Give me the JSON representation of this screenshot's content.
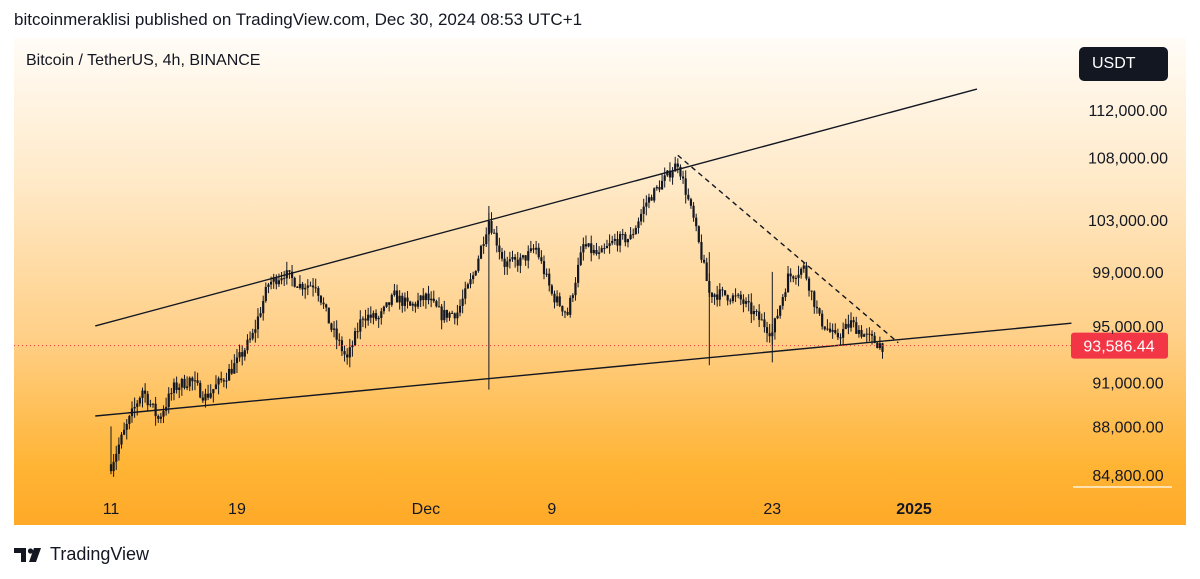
{
  "header": {
    "published": "bitcoinmeraklisi published on TradingView.com, Dec 30, 2024 08:53 UTC+1"
  },
  "symbol": {
    "title": "Bitcoin / TetherUS, 4h, BINANCE"
  },
  "currency_button": {
    "label": "USDT"
  },
  "footer": {
    "brand": "TradingView"
  },
  "colors": {
    "price_label": "#f23645",
    "candle": "#131722",
    "trendline": "#131722"
  },
  "chart_data": {
    "type": "candlestick",
    "title": "Bitcoin / TetherUS, 4h, BINANCE",
    "y_axis": {
      "unit": "USDT",
      "ticks": [
        112000,
        108000,
        103000,
        99000,
        95000,
        91000,
        88000,
        84800
      ],
      "tick_labels": [
        "112,000.00",
        "108,000.00",
        "103,000.00",
        "99,000.00",
        "95,000.00",
        "91,000.00",
        "88,000.00",
        "84,800.00"
      ],
      "range": [
        84000,
        116000
      ],
      "scale": "log"
    },
    "x_axis": {
      "tick_labels": [
        "11",
        "19",
        "Dec",
        "9",
        "23",
        "2025"
      ],
      "tick_dates": [
        "2024-11-11",
        "2024-11-19",
        "2024-12-01",
        "2024-12-09",
        "2024-12-23",
        "2025-01-01"
      ],
      "range": [
        "2024-11-11",
        "2025-01-02"
      ]
    },
    "last_price": {
      "value": 93586.44,
      "label": "93,586.44"
    },
    "price_path": [
      [
        "2024-11-11",
        85500
      ],
      [
        "2024-11-12",
        88000
      ],
      [
        "2024-11-13",
        90500
      ],
      [
        "2024-11-14",
        88500
      ],
      [
        "2024-11-15",
        90600
      ],
      [
        "2024-11-16",
        91200
      ],
      [
        "2024-11-17",
        90000
      ],
      [
        "2024-11-18",
        91100
      ],
      [
        "2024-11-19",
        92400
      ],
      [
        "2024-11-20",
        94300
      ],
      [
        "2024-11-21",
        98100
      ],
      [
        "2024-11-22",
        98900
      ],
      [
        "2024-11-23",
        98000
      ],
      [
        "2024-11-24",
        98100
      ],
      [
        "2024-11-25",
        94800
      ],
      [
        "2024-11-26",
        92600
      ],
      [
        "2024-11-27",
        95800
      ],
      [
        "2024-11-28",
        95500
      ],
      [
        "2024-11-29",
        97200
      ],
      [
        "2024-11-30",
        96400
      ],
      [
        "2024-12-01",
        97100
      ],
      [
        "2024-12-02",
        95800
      ],
      [
        "2024-12-03",
        96000
      ],
      [
        "2024-12-04",
        98700
      ],
      [
        "2024-12-05",
        103000
      ],
      [
        "2024-12-06",
        99600
      ],
      [
        "2024-12-07",
        99800
      ],
      [
        "2024-12-08",
        100800
      ],
      [
        "2024-12-09",
        97300
      ],
      [
        "2024-12-10",
        95900
      ],
      [
        "2024-12-11",
        101000
      ],
      [
        "2024-12-12",
        100200
      ],
      [
        "2024-12-13",
        101400
      ],
      [
        "2024-12-14",
        101600
      ],
      [
        "2024-12-15",
        104400
      ],
      [
        "2024-12-16",
        106000
      ],
      [
        "2024-12-17",
        107600
      ],
      [
        "2024-12-18",
        103000
      ],
      [
        "2024-12-19",
        97400
      ],
      [
        "2024-12-20",
        97300
      ],
      [
        "2024-12-21",
        96900
      ],
      [
        "2024-12-22",
        95700
      ],
      [
        "2024-12-23",
        94500
      ],
      [
        "2024-12-24",
        98600
      ],
      [
        "2024-12-25",
        99300
      ],
      [
        "2024-12-26",
        95500
      ],
      [
        "2024-12-27",
        94100
      ],
      [
        "2024-12-28",
        95200
      ],
      [
        "2024-12-29",
        94200
      ],
      [
        "2024-12-30",
        93586
      ]
    ],
    "trendlines": [
      {
        "kind": "solid",
        "start": [
          "2024-11-10",
          95000
        ],
        "end": [
          "2025-01-05",
          113800
        ]
      },
      {
        "kind": "solid",
        "start": [
          "2024-11-10",
          88700
        ],
        "end": [
          "2025-01-11",
          95200
        ]
      },
      {
        "kind": "dashed",
        "start": [
          "2024-12-17",
          108200
        ],
        "end": [
          "2024-12-31",
          93800
        ]
      }
    ],
    "grid": false,
    "legend": "none"
  }
}
